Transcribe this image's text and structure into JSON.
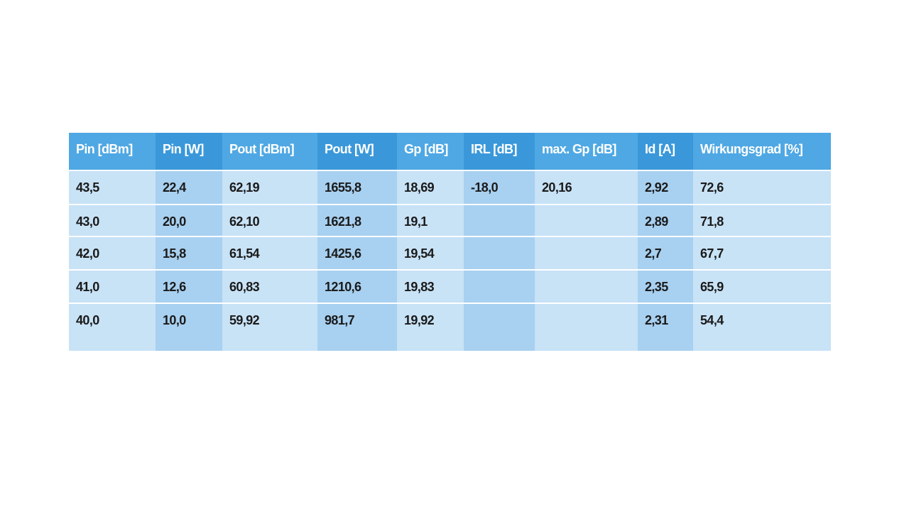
{
  "table": {
    "header": [
      "Pin [dBm]",
      "Pin [W]",
      "Pout [dBm]",
      "Pout [W]",
      "Gp [dB]",
      "IRL [dB]",
      "max. Gp [dB]",
      "Id [A]",
      "Wirkungsgrad [%]"
    ],
    "rows": [
      [
        "43,5",
        "22,4",
        "62,19",
        "1655,8",
        "18,69",
        "-18,0",
        "20,16",
        "2,92",
        "72,6"
      ],
      [
        "43,0",
        "20,0",
        "62,10",
        "1621,8",
        "19,1",
        null,
        null,
        "2,89",
        "71,8"
      ],
      [
        "42,0",
        "15,8",
        "61,54",
        "1425,6",
        "19,54",
        null,
        null,
        "2,7",
        "67,7"
      ],
      [
        "41,0",
        "12,6",
        "60,83",
        "1210,6",
        "19,83",
        null,
        null,
        "2,35",
        "65,9"
      ],
      [
        "40,0",
        "10,0",
        "59,92",
        "981,7",
        "19,92",
        null,
        null,
        "2,31",
        "54,4"
      ]
    ]
  }
}
